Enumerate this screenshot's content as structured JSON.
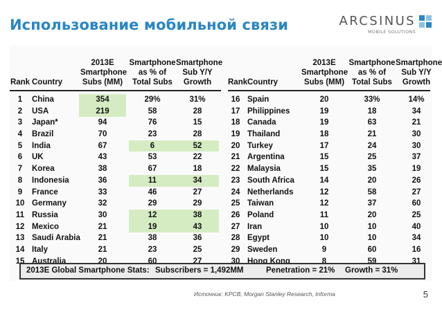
{
  "title": "Использование мобильной связи",
  "logo": {
    "name": "ARCSINUS",
    "tagline": "MOBILE SOLUTIONS"
  },
  "headers": {
    "rank": "Rank",
    "country": "Country",
    "subs": [
      "2013E",
      "Smartphone",
      "Subs (MM)"
    ],
    "pct": [
      "Smartphone",
      "as % of",
      "Total Subs"
    ],
    "yoy": [
      "Smartphone",
      "Sub Y/Y",
      "Growth"
    ]
  },
  "left_rows": [
    {
      "rank": "1",
      "country": "China",
      "subs": "354",
      "pct": "29%",
      "yoy": "31%"
    },
    {
      "rank": "2",
      "country": "USA",
      "subs": "219",
      "pct": "58",
      "yoy": "28"
    },
    {
      "rank": "3",
      "country": "Japan*",
      "subs": "94",
      "pct": "76",
      "yoy": "15"
    },
    {
      "rank": "4",
      "country": "Brazil",
      "subs": "70",
      "pct": "23",
      "yoy": "28"
    },
    {
      "rank": "5",
      "country": "India",
      "subs": "67",
      "pct": "6",
      "yoy": "52"
    },
    {
      "rank": "6",
      "country": "UK",
      "subs": "43",
      "pct": "53",
      "yoy": "22"
    },
    {
      "rank": "7",
      "country": "Korea",
      "subs": "38",
      "pct": "67",
      "yoy": "18"
    },
    {
      "rank": "8",
      "country": "Indonesia",
      "subs": "36",
      "pct": "11",
      "yoy": "34"
    },
    {
      "rank": "9",
      "country": "France",
      "subs": "33",
      "pct": "46",
      "yoy": "27"
    },
    {
      "rank": "10",
      "country": "Germany",
      "subs": "32",
      "pct": "29",
      "yoy": "29"
    },
    {
      "rank": "11",
      "country": "Russia",
      "subs": "30",
      "pct": "12",
      "yoy": "38"
    },
    {
      "rank": "12",
      "country": "Mexico",
      "subs": "21",
      "pct": "19",
      "yoy": "43"
    },
    {
      "rank": "13",
      "country": "Saudi Arabia",
      "subs": "21",
      "pct": "38",
      "yoy": "36"
    },
    {
      "rank": "14",
      "country": "Italy",
      "subs": "21",
      "pct": "23",
      "yoy": "25"
    },
    {
      "rank": "15",
      "country": "Australia",
      "subs": "20",
      "pct": "60",
      "yoy": "27"
    }
  ],
  "right_rows": [
    {
      "rank": "16",
      "country": "Spain",
      "subs": "20",
      "pct": "33%",
      "yoy": "14%"
    },
    {
      "rank": "17",
      "country": "Philippines",
      "subs": "19",
      "pct": "18",
      "yoy": "34"
    },
    {
      "rank": "18",
      "country": "Canada",
      "subs": "19",
      "pct": "63",
      "yoy": "21"
    },
    {
      "rank": "19",
      "country": "Thailand",
      "subs": "18",
      "pct": "21",
      "yoy": "30"
    },
    {
      "rank": "20",
      "country": "Turkey",
      "subs": "17",
      "pct": "24",
      "yoy": "30"
    },
    {
      "rank": "21",
      "country": "Argentina",
      "subs": "15",
      "pct": "25",
      "yoy": "37"
    },
    {
      "rank": "22",
      "country": "Malaysia",
      "subs": "15",
      "pct": "35",
      "yoy": "19"
    },
    {
      "rank": "23",
      "country": "South Africa",
      "subs": "14",
      "pct": "20",
      "yoy": "26"
    },
    {
      "rank": "24",
      "country": "Netherlands",
      "subs": "12",
      "pct": "58",
      "yoy": "27"
    },
    {
      "rank": "25",
      "country": "Taiwan",
      "subs": "12",
      "pct": "37",
      "yoy": "60"
    },
    {
      "rank": "26",
      "country": "Poland",
      "subs": "11",
      "pct": "20",
      "yoy": "25"
    },
    {
      "rank": "27",
      "country": "Iran",
      "subs": "10",
      "pct": "10",
      "yoy": "40"
    },
    {
      "rank": "28",
      "country": "Egypt",
      "subs": "10",
      "pct": "10",
      "yoy": "34"
    },
    {
      "rank": "29",
      "country": "Sweden",
      "subs": "9",
      "pct": "60",
      "yoy": "16"
    },
    {
      "rank": "30",
      "country": "Hong Kong",
      "subs": "8",
      "pct": "59",
      "yoy": "31"
    }
  ],
  "stats": {
    "label": "2013E Global Smartphone Stats:",
    "subscribers": "Subscribers = 1,492MM",
    "penetration": "Penetration = 21%",
    "growth": "Growth = 31%"
  },
  "source": "Источник:  KPCB, Morgan Stanley Research, Informa",
  "page_number": "5",
  "colors": {
    "title": "#2a86c4",
    "highlight": "#d5ecc2",
    "logo_mark": "#2a86c4"
  },
  "highlights": [
    {
      "rows": [
        0,
        1
      ],
      "column": "subs"
    },
    {
      "rows": [
        4
      ],
      "column": "pct-yoy"
    },
    {
      "rows": [
        7
      ],
      "column": "pct-yoy"
    },
    {
      "rows": [
        10,
        11
      ],
      "column": "pct-yoy"
    }
  ]
}
